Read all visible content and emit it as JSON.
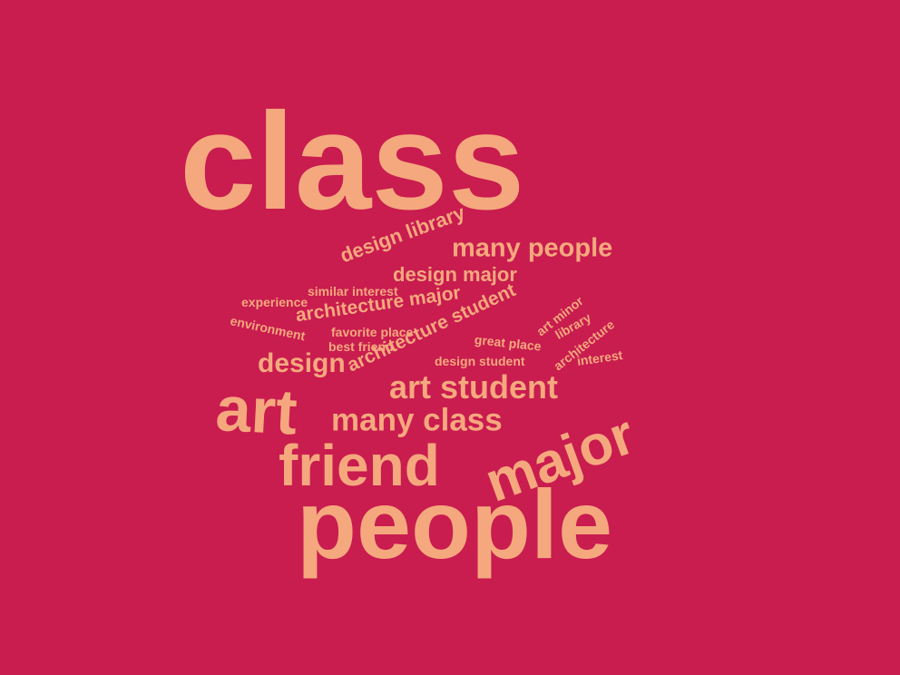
{
  "colors": {
    "background": "#C91C4F",
    "text": "#F5A87E"
  },
  "words": {
    "class": "class",
    "design_library": "design library",
    "many_people": "many people",
    "design_major": "design major",
    "similar_interest": "similar interest",
    "experience": "experience",
    "architecture_major": "architecture major",
    "art_minor": "art minor",
    "environment": "environment",
    "favorite_place": "favorite place",
    "architecture_student": "architecture student",
    "library": "library",
    "architecture": "architecture",
    "great_place": "great place",
    "best_friend": "best friend",
    "design_student": "design student",
    "interest": "interest",
    "design": "design",
    "art_student": "art student",
    "art": "art",
    "many_class": "many class",
    "major": "major",
    "friend": "friend",
    "people": "people"
  }
}
